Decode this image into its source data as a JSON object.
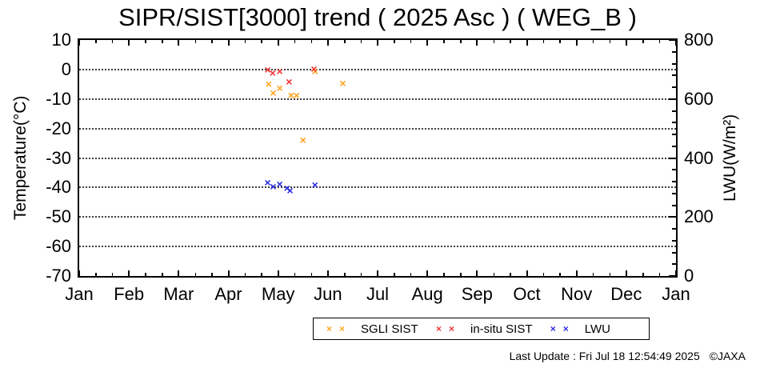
{
  "footer": {
    "last_update": "Last Update : Fri Jul 18 12:54:49 2025",
    "copyright": "©JAXA"
  },
  "chart_data": {
    "type": "scatter",
    "title": "SIPR/SIST[3000] trend ( 2025 Asc ) ( WEG_B )",
    "x_tick_labels": [
      "Jan",
      "Feb",
      "Mar",
      "Apr",
      "May",
      "Jun",
      "Jul",
      "Aug",
      "Sep",
      "Oct",
      "Nov",
      "Dec",
      "Jan"
    ],
    "x_minor_ticks_per_month": 2,
    "xlim_months": [
      0,
      12
    ],
    "left_axis": {
      "label": "Temperature(°C)",
      "ticks": [
        10,
        0,
        -10,
        -20,
        -30,
        -40,
        -50,
        -60,
        -70
      ],
      "lim": [
        10,
        -70
      ]
    },
    "right_axis": {
      "label": "LWU(W/m²)",
      "ticks": [
        800,
        600,
        400,
        200,
        0
      ],
      "lim": [
        800,
        0
      ],
      "minor_step": 40
    },
    "gridlines_at_temp": [
      0,
      -10,
      -20,
      -30,
      -40,
      -50,
      -60
    ],
    "grid_style": "dotted",
    "legend_position": "below-chart",
    "series": [
      {
        "name": "SGLI SIST",
        "axis": "left",
        "color": "#FFA41E",
        "marker": "x",
        "points": [
          {
            "x": 3.81,
            "y": -4.8
          },
          {
            "x": 3.9,
            "y": -7.8
          },
          {
            "x": 4.03,
            "y": -6.2
          },
          {
            "x": 4.26,
            "y": -8.8
          },
          {
            "x": 4.37,
            "y": -8.8
          },
          {
            "x": 4.5,
            "y": -23.8
          },
          {
            "x": 4.74,
            "y": -0.5
          },
          {
            "x": 5.3,
            "y": -4.6
          }
        ]
      },
      {
        "name": "in-situ SIST",
        "axis": "left",
        "color": "#EE3333",
        "marker": "x",
        "points": [
          {
            "x": 3.79,
            "y": 0.0
          },
          {
            "x": 3.89,
            "y": -1.1
          },
          {
            "x": 4.03,
            "y": -0.5
          },
          {
            "x": 4.22,
            "y": -4.0
          },
          {
            "x": 4.72,
            "y": 0.3
          }
        ]
      },
      {
        "name": "LWU",
        "axis": "right",
        "color": "#2B2BE0",
        "marker": "x",
        "points": [
          {
            "x": 3.79,
            "y": 316
          },
          {
            "x": 3.9,
            "y": 305
          },
          {
            "x": 4.03,
            "y": 313
          },
          {
            "x": 4.18,
            "y": 297
          },
          {
            "x": 4.24,
            "y": 289
          },
          {
            "x": 4.74,
            "y": 308
          }
        ]
      }
    ]
  }
}
